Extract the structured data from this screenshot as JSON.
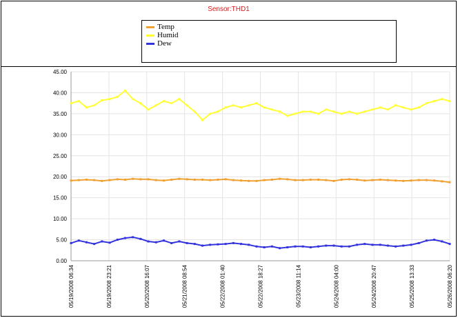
{
  "chart_data": {
    "type": "line",
    "title": "Sensor:THD1",
    "xlabel": "",
    "ylabel": "",
    "ylim": [
      0,
      45
    ],
    "yticks": [
      "0.00",
      "5.00",
      "10.00",
      "15.00",
      "20.00",
      "25.00",
      "30.00",
      "35.00",
      "40.00",
      "45.00"
    ],
    "xticks": [
      "05/19/2008 06:34",
      "05/19/2008 23:21",
      "05/20/2008 16:07",
      "05/21/2008 08:54",
      "05/22/2008 01:40",
      "05/22/2008 18:27",
      "05/23/2008 11:14",
      "05/24/2008 04:00",
      "05/24/2008 20:47",
      "05/25/2008 13:33",
      "05/26/2008 06:20"
    ],
    "grid": true,
    "legend_position": "top",
    "series": [
      {
        "name": "Temp",
        "color": "#f0a030",
        "values": [
          19.1,
          19.2,
          19.3,
          19.2,
          19.0,
          19.2,
          19.4,
          19.3,
          19.5,
          19.4,
          19.4,
          19.2,
          19.1,
          19.3,
          19.5,
          19.4,
          19.3,
          19.3,
          19.2,
          19.3,
          19.4,
          19.2,
          19.1,
          19.0,
          19.0,
          19.2,
          19.3,
          19.5,
          19.4,
          19.2,
          19.2,
          19.3,
          19.3,
          19.2,
          19.0,
          19.3,
          19.4,
          19.3,
          19.1,
          19.2,
          19.3,
          19.2,
          19.1,
          19.0,
          19.1,
          19.2,
          19.2,
          19.1,
          18.9,
          18.7
        ]
      },
      {
        "name": "Humid",
        "color": "#ffff33",
        "values": [
          37.5,
          38.0,
          36.5,
          37.0,
          38.2,
          38.5,
          39.0,
          40.5,
          38.5,
          37.5,
          36.0,
          37.0,
          38.0,
          37.5,
          38.5,
          37.0,
          35.5,
          33.5,
          35.0,
          35.5,
          36.5,
          37.0,
          36.5,
          37.0,
          37.5,
          36.5,
          36.0,
          35.5,
          34.5,
          35.0,
          35.5,
          35.5,
          35.0,
          36.0,
          35.5,
          35.0,
          35.5,
          35.0,
          35.5,
          36.0,
          36.5,
          36.0,
          37.0,
          36.5,
          36.0,
          36.5,
          37.5,
          38.0,
          38.5,
          38.0
        ]
      },
      {
        "name": "Dew",
        "color": "#3333dd",
        "values": [
          4.2,
          4.8,
          4.4,
          4.0,
          4.6,
          4.3,
          5.0,
          5.4,
          5.6,
          5.2,
          4.6,
          4.4,
          4.8,
          4.2,
          4.6,
          4.2,
          4.0,
          3.6,
          3.8,
          3.9,
          4.0,
          4.2,
          4.0,
          3.8,
          3.4,
          3.2,
          3.4,
          3.0,
          3.2,
          3.4,
          3.4,
          3.2,
          3.4,
          3.6,
          3.6,
          3.4,
          3.4,
          3.8,
          4.0,
          3.8,
          3.8,
          3.6,
          3.4,
          3.6,
          3.8,
          4.2,
          4.8,
          5.0,
          4.6,
          4.0
        ]
      }
    ]
  }
}
